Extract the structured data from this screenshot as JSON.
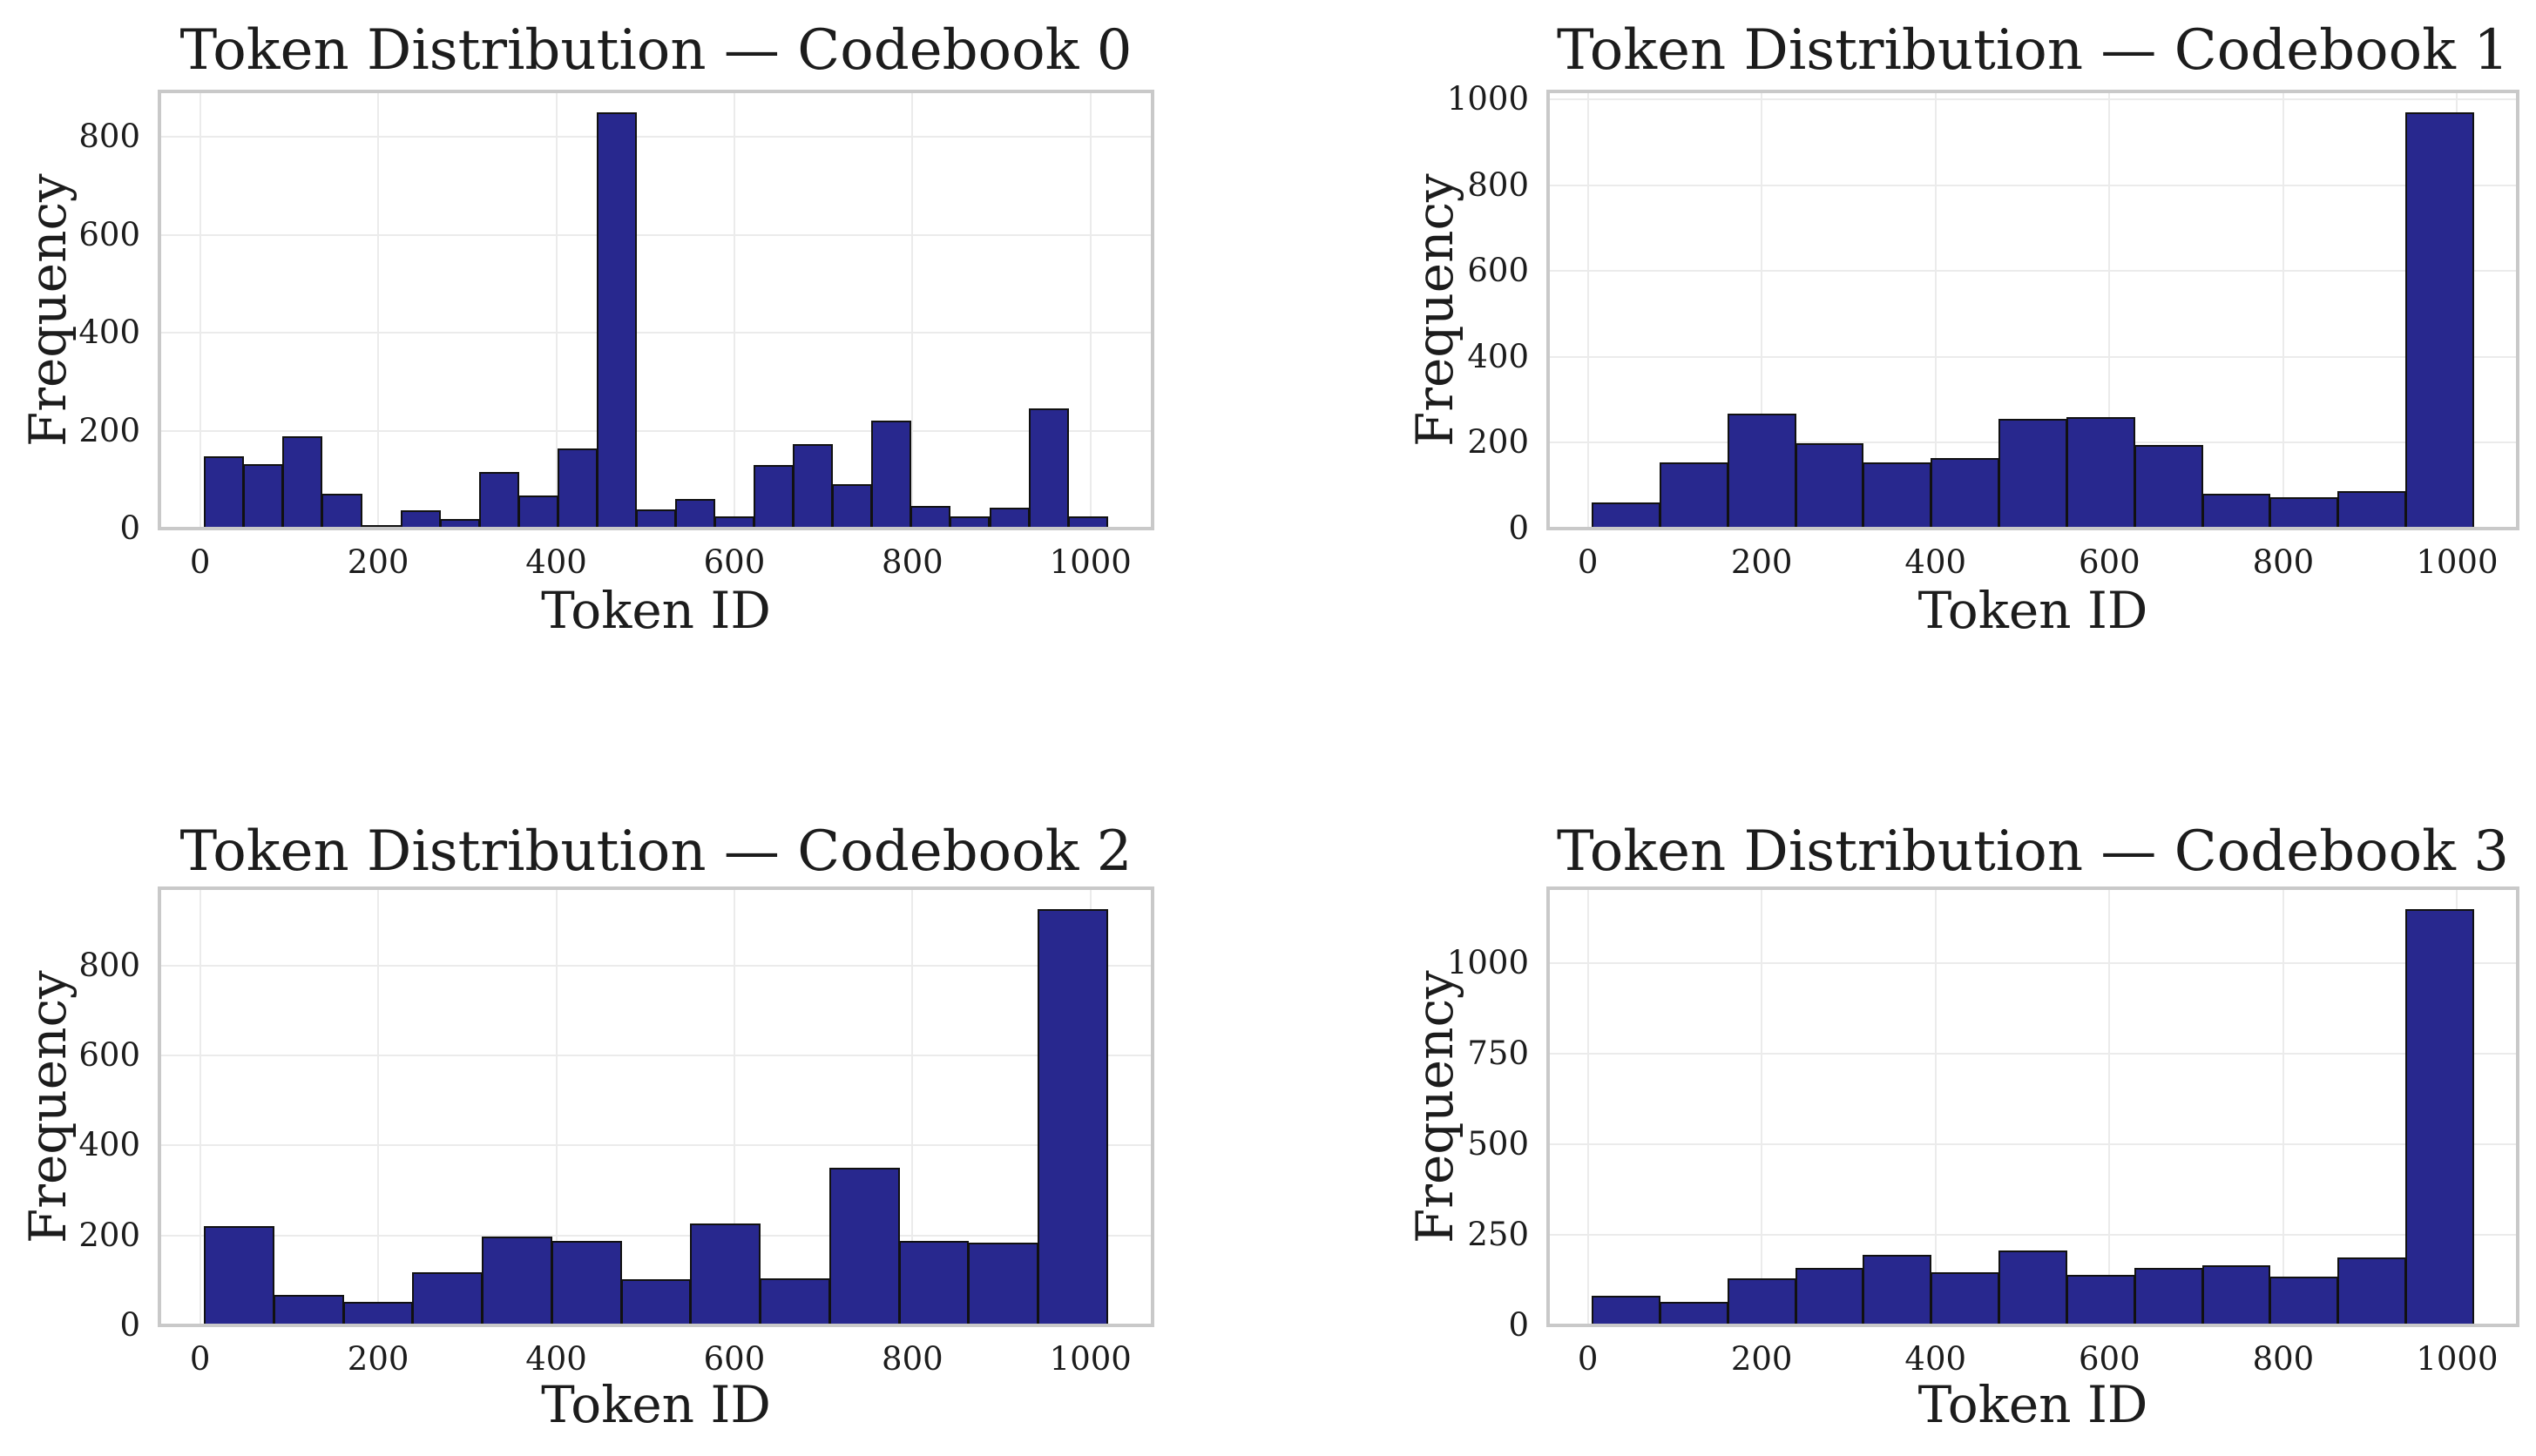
{
  "figure": {
    "background": "#ffffff",
    "kind": "matplotlib-style histogram grid, 2 rows x 2 columns"
  },
  "style": {
    "bar_fill": "#28288e",
    "bar_edge": "#111111",
    "grid_color": "#ebebeb",
    "frame_color": "#c9c9c9",
    "text_color": "#1c1c1c"
  },
  "chart_data": [
    {
      "type": "histogram",
      "title": "Token Distribution — Codebook 0",
      "xlabel": "Token ID",
      "ylabel": "Frequency",
      "x_ticks": [
        0,
        200,
        400,
        600,
        800,
        1000
      ],
      "y_ticks": [
        0,
        200,
        400,
        600,
        800
      ],
      "bin_start": 5,
      "bin_end": 1019,
      "bins": 23,
      "values": [
        147,
        132,
        188,
        72,
        4,
        38,
        19,
        115,
        68,
        164,
        850,
        40,
        61,
        25,
        130,
        172,
        90,
        220,
        46,
        25,
        42,
        245,
        25
      ],
      "xlim_note": "5% margins on both axes, ymax = 1.05 * max value",
      "grid": true,
      "legend": false
    },
    {
      "type": "histogram",
      "title": "Token Distribution — Codebook 1",
      "xlabel": "Token ID",
      "ylabel": "Frequency",
      "x_ticks": [
        0,
        200,
        400,
        600,
        800,
        1000
      ],
      "y_ticks": [
        0,
        200,
        400,
        600,
        800,
        1000
      ],
      "bin_start": 5,
      "bin_end": 1019,
      "bins": 13,
      "values": [
        60,
        154,
        267,
        198,
        155,
        164,
        255,
        260,
        195,
        82,
        74,
        87,
        970
      ],
      "xlim_note": "5% margins on both axes, ymax = 1.05 * max value",
      "grid": true,
      "legend": false
    },
    {
      "type": "histogram",
      "title": "Token Distribution — Codebook 2",
      "xlabel": "Token ID",
      "ylabel": "Frequency",
      "x_ticks": [
        0,
        200,
        400,
        600,
        800,
        1000
      ],
      "y_ticks": [
        0,
        200,
        400,
        600,
        800
      ],
      "bin_start": 5,
      "bin_end": 1019,
      "bins": 13,
      "values": [
        221,
        67,
        52,
        119,
        197,
        188,
        103,
        227,
        104,
        350,
        188,
        183,
        925
      ],
      "xlim_note": "5% margins on both axes, ymax = 1.05 * max value",
      "grid": true,
      "legend": false
    },
    {
      "type": "histogram",
      "title": "Token Distribution — Codebook 3",
      "xlabel": "Token ID",
      "ylabel": "Frequency",
      "x_ticks": [
        0,
        200,
        400,
        600,
        800,
        1000
      ],
      "y_ticks": [
        0,
        250,
        500,
        750,
        1000
      ],
      "bin_start": 5,
      "bin_end": 1019,
      "bins": 13,
      "values": [
        81,
        66,
        130,
        158,
        195,
        147,
        206,
        140,
        158,
        167,
        134,
        187,
        1150
      ],
      "xlim_note": "5% margins on both axes, ymax = 1.05 * max value",
      "grid": true,
      "legend": false
    }
  ]
}
